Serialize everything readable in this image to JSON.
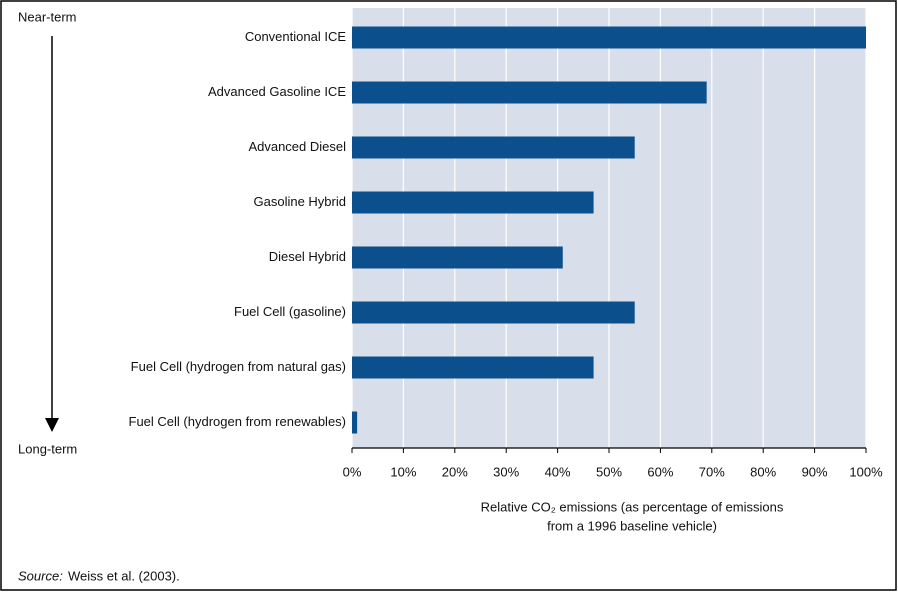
{
  "chart_data": {
    "type": "barh",
    "categories": [
      "Conventional ICE",
      "Advanced Gasoline ICE",
      "Advanced Diesel",
      "Gasoline Hybrid",
      "Diesel Hybrid",
      "Fuel Cell (gasoline)",
      "Fuel Cell (hydrogen from natural gas)",
      "Fuel Cell (hydrogen from renewables)"
    ],
    "values": [
      100,
      69,
      55,
      47,
      41,
      55,
      47,
      1
    ],
    "color": "#0b4f8d",
    "plot_background": "#d9dfea",
    "grid": true,
    "xlim": [
      0,
      100
    ],
    "xticks": [
      {
        "value": 0,
        "label": "0%"
      },
      {
        "value": 10,
        "label": "10%"
      },
      {
        "value": 20,
        "label": "20%"
      },
      {
        "value": 30,
        "label": "30%"
      },
      {
        "value": 40,
        "label": "40%"
      },
      {
        "value": 50,
        "label": "50%"
      },
      {
        "value": 60,
        "label": "60%"
      },
      {
        "value": 70,
        "label": "70%"
      },
      {
        "value": 80,
        "label": "80%"
      },
      {
        "value": 90,
        "label": "90%"
      },
      {
        "value": 100,
        "label": "100%"
      }
    ],
    "x_label": [
      "Relative CO₂ emissions (as percentage of emissions",
      "from a 1996 baseline vehicle)"
    ],
    "annotations": {
      "top": "Near-term",
      "bottom": "Long-term"
    },
    "source": {
      "label": "Source:",
      "text": "Weiss et al. (2003)."
    }
  }
}
